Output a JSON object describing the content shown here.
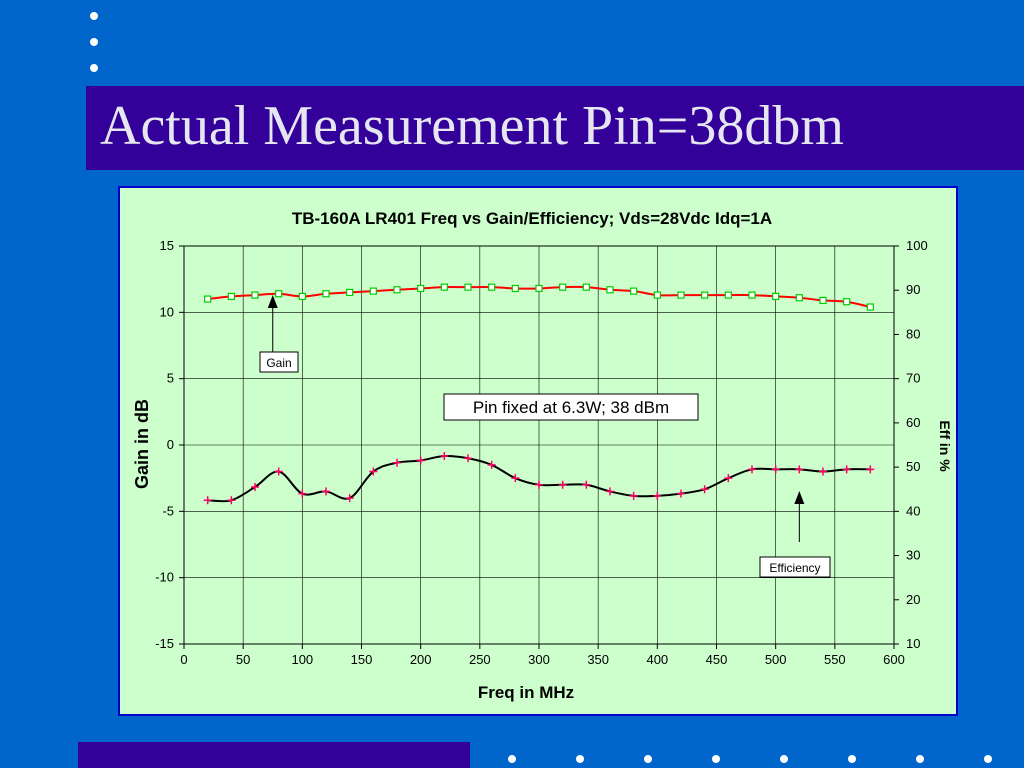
{
  "slide": {
    "title": "Actual Measurement Pin=38dbm"
  },
  "chart_data": {
    "type": "line",
    "title": "TB-160A LR401 Freq vs Gain/Efficiency; Vds=28Vdc Idq=1A",
    "xlabel": "Freq in MHz",
    "ylabel": "Gain in dB",
    "y2label": "Eff in %",
    "xlim": [
      0,
      600
    ],
    "ylim": [
      -15,
      15
    ],
    "y2lim": [
      10,
      100
    ],
    "x_ticks": [
      0,
      50,
      100,
      150,
      200,
      250,
      300,
      350,
      400,
      450,
      500,
      550,
      600
    ],
    "y_ticks": [
      -15,
      -10,
      -5,
      0,
      5,
      10,
      15
    ],
    "y2_ticks": [
      10,
      20,
      30,
      40,
      50,
      60,
      70,
      80,
      90,
      100
    ],
    "grid": true,
    "x": [
      20,
      40,
      60,
      80,
      100,
      120,
      140,
      160,
      180,
      200,
      220,
      240,
      260,
      280,
      300,
      320,
      340,
      360,
      380,
      400,
      420,
      440,
      460,
      480,
      500,
      520,
      540,
      560,
      580
    ],
    "series": [
      {
        "name": "Gain",
        "axis": "left",
        "color": "#ff0000",
        "marker": "square",
        "marker_color": "#00cc00",
        "values": [
          11.0,
          11.2,
          11.3,
          11.4,
          11.2,
          11.4,
          11.5,
          11.6,
          11.7,
          11.8,
          11.9,
          11.9,
          11.9,
          11.8,
          11.8,
          11.9,
          11.9,
          11.7,
          11.6,
          11.3,
          11.3,
          11.3,
          11.3,
          11.3,
          11.2,
          11.1,
          10.9,
          10.8,
          10.4
        ]
      },
      {
        "name": "Efficiency",
        "axis": "right",
        "color": "#000000",
        "marker": "plus",
        "marker_color": "#ff0066",
        "values": [
          42.5,
          42.5,
          45.5,
          49.0,
          44.0,
          44.5,
          43.0,
          49.0,
          51.0,
          51.5,
          52.5,
          52.0,
          50.5,
          47.5,
          46.0,
          46.0,
          46.0,
          44.5,
          43.5,
          43.5,
          44.0,
          45.0,
          47.5,
          49.5,
          49.5,
          49.5,
          49.0,
          49.5,
          49.5
        ]
      }
    ],
    "annotations": [
      {
        "text": "Pin fixed at 6.3W; 38 dBm"
      },
      {
        "text": "Gain",
        "points_to": "Gain",
        "points_to_x": 75
      },
      {
        "text": "Efficiency",
        "points_to": "Efficiency",
        "points_to_x": 520
      }
    ]
  }
}
